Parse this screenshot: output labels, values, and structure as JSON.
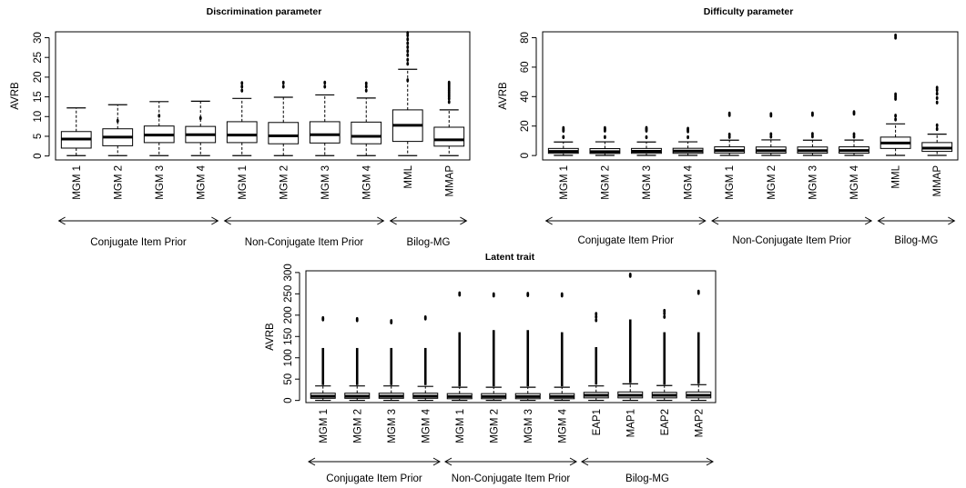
{
  "chart_data": [
    {
      "type": "box",
      "title": "Discrimination parameter",
      "ylabel": "AVRB",
      "ylim": [
        -1,
        31.5
      ],
      "yticks": [
        "0",
        "5",
        "10",
        "15",
        "20",
        "25",
        "30"
      ],
      "categories": [
        "MGM 1",
        "MGM 2",
        "MGM 3",
        "MGM 4",
        "MGM 1",
        "MGM 2",
        "MGM 3",
        "MGM 4",
        "MML",
        "MMAP"
      ],
      "series": [
        {
          "min": 0.1,
          "q1": 2.0,
          "median": 4.3,
          "q3": 6.2,
          "max": 12.2,
          "outliers": []
        },
        {
          "min": 0.1,
          "q1": 2.6,
          "median": 4.8,
          "q3": 6.9,
          "max": 13.0,
          "outliers": [
            8.9
          ]
        },
        {
          "min": 0.1,
          "q1": 3.4,
          "median": 5.3,
          "q3": 7.6,
          "max": 13.8,
          "outliers": [
            10.2
          ]
        },
        {
          "min": 0.1,
          "q1": 3.4,
          "median": 5.4,
          "q3": 7.5,
          "max": 13.9,
          "outliers": [
            9.6
          ]
        },
        {
          "min": 0.1,
          "q1": 3.4,
          "median": 5.3,
          "q3": 8.7,
          "max": 14.6,
          "outliers": [
            16.6,
            17.6,
            18.5
          ]
        },
        {
          "min": 0.1,
          "q1": 3.1,
          "median": 5.1,
          "q3": 8.5,
          "max": 14.9,
          "outliers": [
            17.6,
            18.6
          ]
        },
        {
          "min": 0.1,
          "q1": 3.3,
          "median": 5.4,
          "q3": 8.7,
          "max": 15.5,
          "outliers": [
            17.6,
            18.6
          ]
        },
        {
          "min": 0.1,
          "q1": 3.1,
          "median": 5.0,
          "q3": 8.6,
          "max": 14.7,
          "outliers": [
            16.6,
            17.6,
            18.4
          ]
        },
        {
          "min": 0.1,
          "q1": 3.7,
          "median": 7.8,
          "q3": 11.7,
          "max": 22.0,
          "outliers": [
            19.2,
            23.4,
            24.4,
            25.6,
            26.6,
            27.6,
            28.6,
            29.6,
            30.6,
            31.2
          ]
        },
        {
          "min": 0.1,
          "q1": 2.5,
          "median": 4.1,
          "q3": 7.3,
          "max": 11.7,
          "outliers": [
            13.7,
            14.6,
            15.2,
            15.7,
            16.2,
            16.7,
            17.2,
            17.7,
            18.2,
            18.6
          ]
        }
      ],
      "groups": [
        {
          "label": "Conjugate Item Prior",
          "from": 0,
          "to": 3
        },
        {
          "label": "Non-Conjugate Item Prior",
          "from": 4,
          "to": 7
        },
        {
          "label": "Bilog-MG",
          "from": 8,
          "to": 9
        }
      ]
    },
    {
      "type": "box",
      "title": "Difficulty parameter",
      "ylabel": "AVRB",
      "ylim": [
        -3,
        84
      ],
      "yticks": [
        "0",
        "20",
        "40",
        "60",
        "80"
      ],
      "categories": [
        "MGM 1",
        "MGM 2",
        "MGM 3",
        "MGM 4",
        "MGM 1",
        "MGM 2",
        "MGM 3",
        "MGM 4",
        "MML",
        "MMAP"
      ],
      "series": [
        {
          "min": 0.1,
          "q1": 1.5,
          "median": 2.8,
          "q3": 4.8,
          "max": 9.2,
          "outliers": [
            12.5,
            16.8,
            17.6,
            18.6
          ]
        },
        {
          "min": 0.1,
          "q1": 1.4,
          "median": 2.6,
          "q3": 4.7,
          "max": 9.3,
          "outliers": [
            12.5,
            16.9,
            17.8,
            18.6
          ]
        },
        {
          "min": 0.1,
          "q1": 1.5,
          "median": 2.9,
          "q3": 4.8,
          "max": 9.2,
          "outliers": [
            12.4,
            16.9,
            17.9,
            18.7
          ]
        },
        {
          "min": 0.1,
          "q1": 1.5,
          "median": 3.0,
          "q3": 4.9,
          "max": 9.3,
          "outliers": [
            12.4,
            16.4,
            17.4,
            18.2
          ]
        },
        {
          "min": 0.1,
          "q1": 1.7,
          "median": 3.4,
          "q3": 5.9,
          "max": 10.4,
          "outliers": [
            12.6,
            14.2,
            27.5,
            28.5
          ]
        },
        {
          "min": 0.1,
          "q1": 1.6,
          "median": 3.3,
          "q3": 5.8,
          "max": 10.6,
          "outliers": [
            12.8,
            14.5,
            27.1,
            28.1
          ]
        },
        {
          "min": 0.1,
          "q1": 1.6,
          "median": 3.3,
          "q3": 5.8,
          "max": 10.4,
          "outliers": [
            13.0,
            14.6,
            27.6,
            28.6
          ]
        },
        {
          "min": 0.1,
          "q1": 1.6,
          "median": 3.4,
          "q3": 5.9,
          "max": 10.5,
          "outliers": [
            12.8,
            14.5,
            28.4,
            29.4
          ]
        },
        {
          "min": 0.1,
          "q1": 4.8,
          "median": 8.5,
          "q3": 12.5,
          "max": 21.5,
          "outliers": [
            24.5,
            27.0,
            38.5,
            40.0,
            41.5,
            80.0,
            81.5
          ]
        },
        {
          "min": 0.1,
          "q1": 2.8,
          "median": 5.0,
          "q3": 8.8,
          "max": 14.5,
          "outliers": [
            18.0,
            20.5,
            36.0,
            39.0,
            42.0,
            44.5,
            46.0
          ]
        }
      ],
      "groups": [
        {
          "label": "Conjugate Item Prior",
          "from": 0,
          "to": 3
        },
        {
          "label": "Non-Conjugate Item Prior",
          "from": 4,
          "to": 7
        },
        {
          "label": "Bilog-MG",
          "from": 8,
          "to": 9
        }
      ]
    },
    {
      "type": "box",
      "title": "Latent trait",
      "ylabel": "AVRB",
      "ylim": [
        -5,
        304
      ],
      "yticks": [
        "0",
        "50",
        "100",
        "150",
        "200",
        "250",
        "300"
      ],
      "categories": [
        "MGM 1",
        "MGM 2",
        "MGM 3",
        "MGM 4",
        "MGM 1",
        "MGM 2",
        "MGM 3",
        "MGM 4",
        "EAP1",
        "MAP1",
        "EAP2",
        "MAP2"
      ],
      "series": [
        {
          "min": 0.2,
          "q1": 5,
          "median": 10,
          "q3": 17,
          "max": 34,
          "outliers_dense": [
            36,
            123
          ],
          "outliers": [
            190,
            193
          ]
        },
        {
          "min": 0.2,
          "q1": 5,
          "median": 10,
          "q3": 17,
          "max": 34,
          "outliers_dense": [
            36,
            123
          ],
          "outliers": [
            188,
            191
          ]
        },
        {
          "min": 0.2,
          "q1": 5,
          "median": 10,
          "q3": 17,
          "max": 34,
          "outliers_dense": [
            36,
            123
          ],
          "outliers": [
            183,
            186
          ]
        },
        {
          "min": 0.2,
          "q1": 5,
          "median": 10,
          "q3": 17,
          "max": 33,
          "outliers_dense": [
            36,
            123
          ],
          "outliers": [
            192,
            195
          ]
        },
        {
          "min": 0.2,
          "q1": 4,
          "median": 9,
          "q3": 16,
          "max": 31,
          "outliers_dense": [
            33,
            160
          ],
          "outliers": [
            248,
            251
          ]
        },
        {
          "min": 0.2,
          "q1": 4,
          "median": 9,
          "q3": 16,
          "max": 31,
          "outliers_dense": [
            33,
            165
          ],
          "outliers": [
            246,
            249
          ]
        },
        {
          "min": 0.2,
          "q1": 4,
          "median": 9,
          "q3": 16,
          "max": 31,
          "outliers_dense": [
            33,
            165
          ],
          "outliers": [
            247,
            250
          ]
        },
        {
          "min": 0.2,
          "q1": 4,
          "median": 9,
          "q3": 16,
          "max": 31,
          "outliers_dense": [
            33,
            160
          ],
          "outliers": [
            246,
            249
          ]
        },
        {
          "min": 0.2,
          "q1": 6,
          "median": 12,
          "q3": 19,
          "max": 34,
          "outliers_dense": [
            37,
            125
          ],
          "outliers": [
            188,
            196,
            203
          ]
        },
        {
          "min": 0.2,
          "q1": 6,
          "median": 12,
          "q3": 20,
          "max": 39,
          "outliers_dense": [
            41,
            190
          ],
          "outliers": [
            292,
            295
          ]
        },
        {
          "min": 0.2,
          "q1": 6,
          "median": 12,
          "q3": 19,
          "max": 35,
          "outliers_dense": [
            37,
            160
          ],
          "outliers": [
            196,
            204,
            210
          ]
        },
        {
          "min": 0.2,
          "q1": 6,
          "median": 12,
          "q3": 20,
          "max": 37,
          "outliers_dense": [
            39,
            160
          ],
          "outliers": [
            252,
            255
          ]
        }
      ],
      "groups": [
        {
          "label": "Conjugate Item Prior",
          "from": 0,
          "to": 3
        },
        {
          "label": "Non-Conjugate Item Prior",
          "from": 4,
          "to": 7
        },
        {
          "label": "Bilog-MG",
          "from": 8,
          "to": 11
        }
      ]
    }
  ]
}
